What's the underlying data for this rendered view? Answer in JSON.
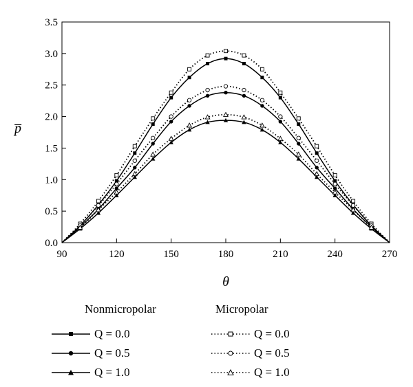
{
  "chart_data": {
    "type": "line",
    "xlabel": "θ",
    "ylabel": "p̅",
    "xlim": [
      90,
      270
    ],
    "ylim": [
      0,
      3.5
    ],
    "xticks": [
      "90",
      "120",
      "150",
      "180",
      "210",
      "240",
      "270"
    ],
    "yticks": [
      "0.0",
      "0.5",
      "1.0",
      "1.5",
      "2.0",
      "2.5",
      "3.0",
      "3.5"
    ],
    "grid": false,
    "legend_position": "bottom",
    "x": [
      90,
      100,
      110,
      120,
      130,
      140,
      150,
      160,
      170,
      180,
      190,
      200,
      210,
      220,
      230,
      240,
      250,
      260,
      270
    ],
    "series": [
      {
        "group": "Nonmicropolar",
        "name": "Q = 0.0",
        "style": "solid",
        "marker": "square",
        "values": [
          0.0,
          0.27,
          0.6,
          0.98,
          1.42,
          1.88,
          2.3,
          2.62,
          2.84,
          2.92,
          2.84,
          2.62,
          2.3,
          1.88,
          1.42,
          0.98,
          0.6,
          0.27,
          0.0
        ]
      },
      {
        "group": "Nonmicropolar",
        "name": "Q = 0.5",
        "style": "solid",
        "marker": "circle",
        "values": [
          0.0,
          0.25,
          0.53,
          0.86,
          1.19,
          1.57,
          1.92,
          2.17,
          2.33,
          2.38,
          2.33,
          2.17,
          1.92,
          1.57,
          1.19,
          0.86,
          0.53,
          0.25,
          0.0
        ]
      },
      {
        "group": "Nonmicropolar",
        "name": "Q = 1.0",
        "style": "solid",
        "marker": "triangle",
        "values": [
          0.0,
          0.22,
          0.47,
          0.75,
          1.04,
          1.33,
          1.59,
          1.79,
          1.91,
          1.94,
          1.91,
          1.79,
          1.59,
          1.33,
          1.04,
          0.75,
          0.47,
          0.22,
          0.0
        ]
      },
      {
        "group": "Micropolar",
        "name": "Q = 0.0",
        "style": "dotted",
        "marker": "square-open",
        "values": [
          0.0,
          0.3,
          0.66,
          1.07,
          1.53,
          1.97,
          2.38,
          2.75,
          2.97,
          3.04,
          2.97,
          2.75,
          2.38,
          1.97,
          1.53,
          1.07,
          0.66,
          0.3,
          0.0
        ]
      },
      {
        "group": "Micropolar",
        "name": "Q = 0.5",
        "style": "dotted",
        "marker": "circle-open",
        "values": [
          0.0,
          0.27,
          0.59,
          0.93,
          1.3,
          1.66,
          2.0,
          2.26,
          2.42,
          2.48,
          2.42,
          2.26,
          2.0,
          1.66,
          1.3,
          0.93,
          0.59,
          0.27,
          0.0
        ]
      },
      {
        "group": "Micropolar",
        "name": "Q = 1.0",
        "style": "dotted",
        "marker": "triangle-open",
        "values": [
          0.0,
          0.24,
          0.52,
          0.8,
          1.09,
          1.4,
          1.65,
          1.86,
          1.99,
          2.03,
          1.99,
          1.86,
          1.65,
          1.4,
          1.09,
          0.8,
          0.52,
          0.24,
          0.0
        ]
      }
    ]
  },
  "legend": {
    "nonmicropolar_title": "Nonmicropolar",
    "micropolar_title": "Micropolar",
    "items": [
      "Q = 0.0",
      "Q = 0.5",
      "Q = 1.0"
    ]
  }
}
